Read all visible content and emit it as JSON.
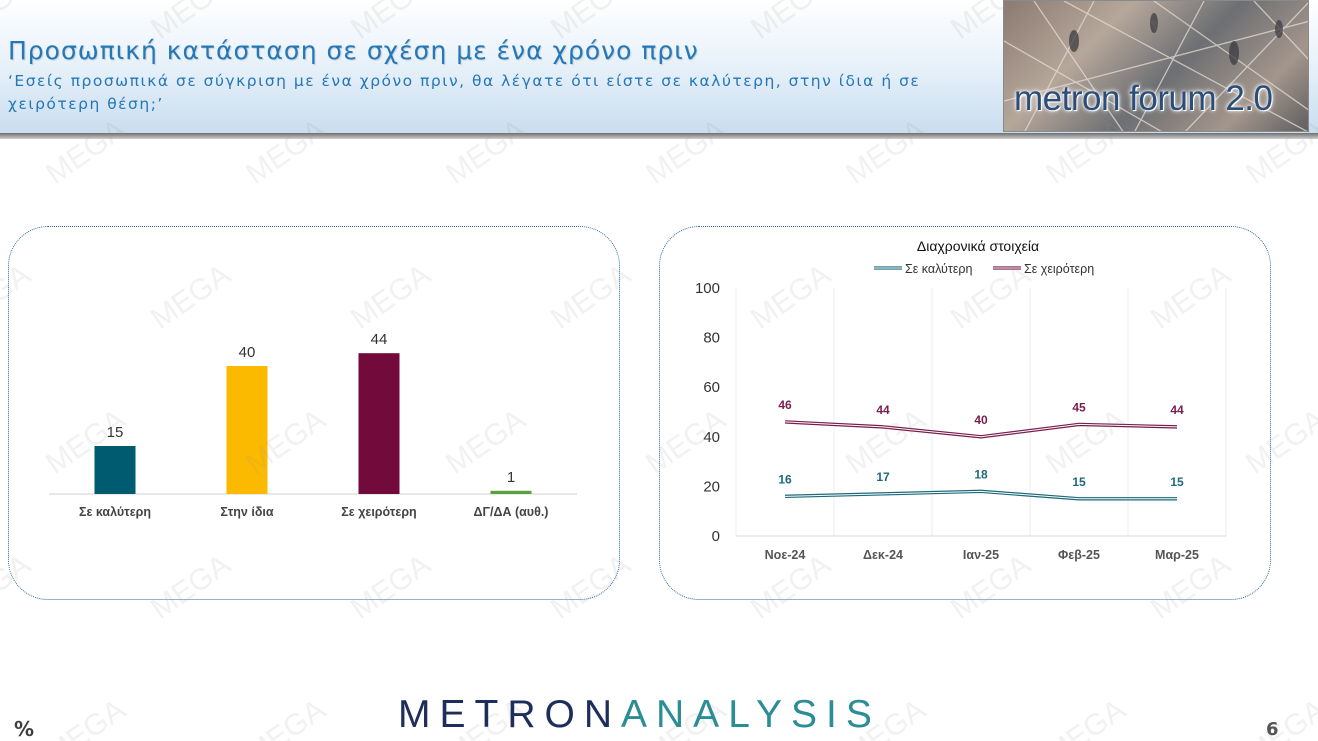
{
  "header": {
    "title": "Προσωπική κατάσταση σε σχέση με ένα χρόνο πριν",
    "subtitle": "‘Εσείς προσωπικά σε σύγκριση με ένα χρόνο πριν, θα λέγατε ότι είστε σε καλύτερη, στην ίδια ή σε χειρότερη θέση;’",
    "logo_text": "metron forum 2.0"
  },
  "watermark_text": "MEGA",
  "chart_data": [
    {
      "type": "bar",
      "title": "",
      "categories": [
        "Σε καλύτερη",
        "Στην ίδια",
        "Σε χειρότερη",
        "ΔΓ/ΔΑ (αυθ.)"
      ],
      "values": [
        15,
        40,
        44,
        1
      ],
      "colors": [
        "#005a70",
        "#fbb900",
        "#720a3b",
        "#56a33a"
      ],
      "ylim": [
        0,
        50
      ]
    },
    {
      "type": "line",
      "title": "Διαχρονικά στοιχεία",
      "categories": [
        "Νοε-24",
        "Δεκ-24",
        "Ιαν-25",
        "Φεβ-25",
        "Μαρ-25"
      ],
      "series": [
        {
          "name": "Σε καλύτερη",
          "values": [
            16,
            17,
            18,
            15,
            15
          ],
          "color": "#1d6a7a"
        },
        {
          "name": "Σε χειρότερη",
          "values": [
            46,
            44,
            40,
            45,
            44
          ],
          "color": "#7a1d4d"
        }
      ],
      "yticks": [
        0,
        20,
        40,
        60,
        80,
        100
      ],
      "ylim": [
        0,
        100
      ],
      "legend": "top",
      "grid": "vertical"
    }
  ],
  "footer": {
    "brand_part1": "METRON",
    "brand_part2": "ANALYSIS",
    "unit": "%",
    "page_number": "6"
  }
}
